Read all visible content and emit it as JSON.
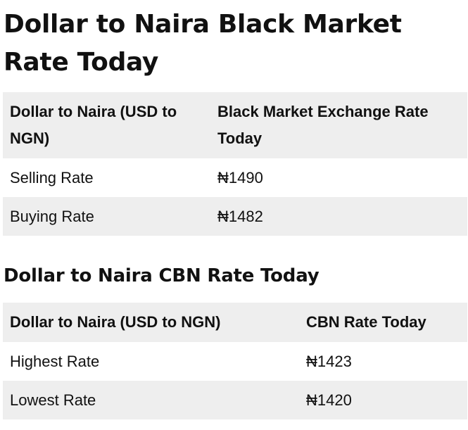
{
  "title": "Dollar to Naira Black Market Rate Today",
  "black_market": {
    "headers": [
      "Dollar to Naira (USD to NGN)",
      "Black Market Exchange Rate Today"
    ],
    "rows": [
      {
        "label": "Selling Rate",
        "value": "₦1490"
      },
      {
        "label": "Buying Rate",
        "value": "₦1482"
      }
    ]
  },
  "cbn_heading": "Dollar to Naira CBN Rate Today",
  "cbn": {
    "headers": [
      "Dollar to Naira (USD to NGN)",
      "CBN Rate Today"
    ],
    "rows": [
      {
        "label": "Highest Rate",
        "value": "₦1423"
      },
      {
        "label": "Lowest Rate",
        "value": "₦1420"
      }
    ]
  }
}
